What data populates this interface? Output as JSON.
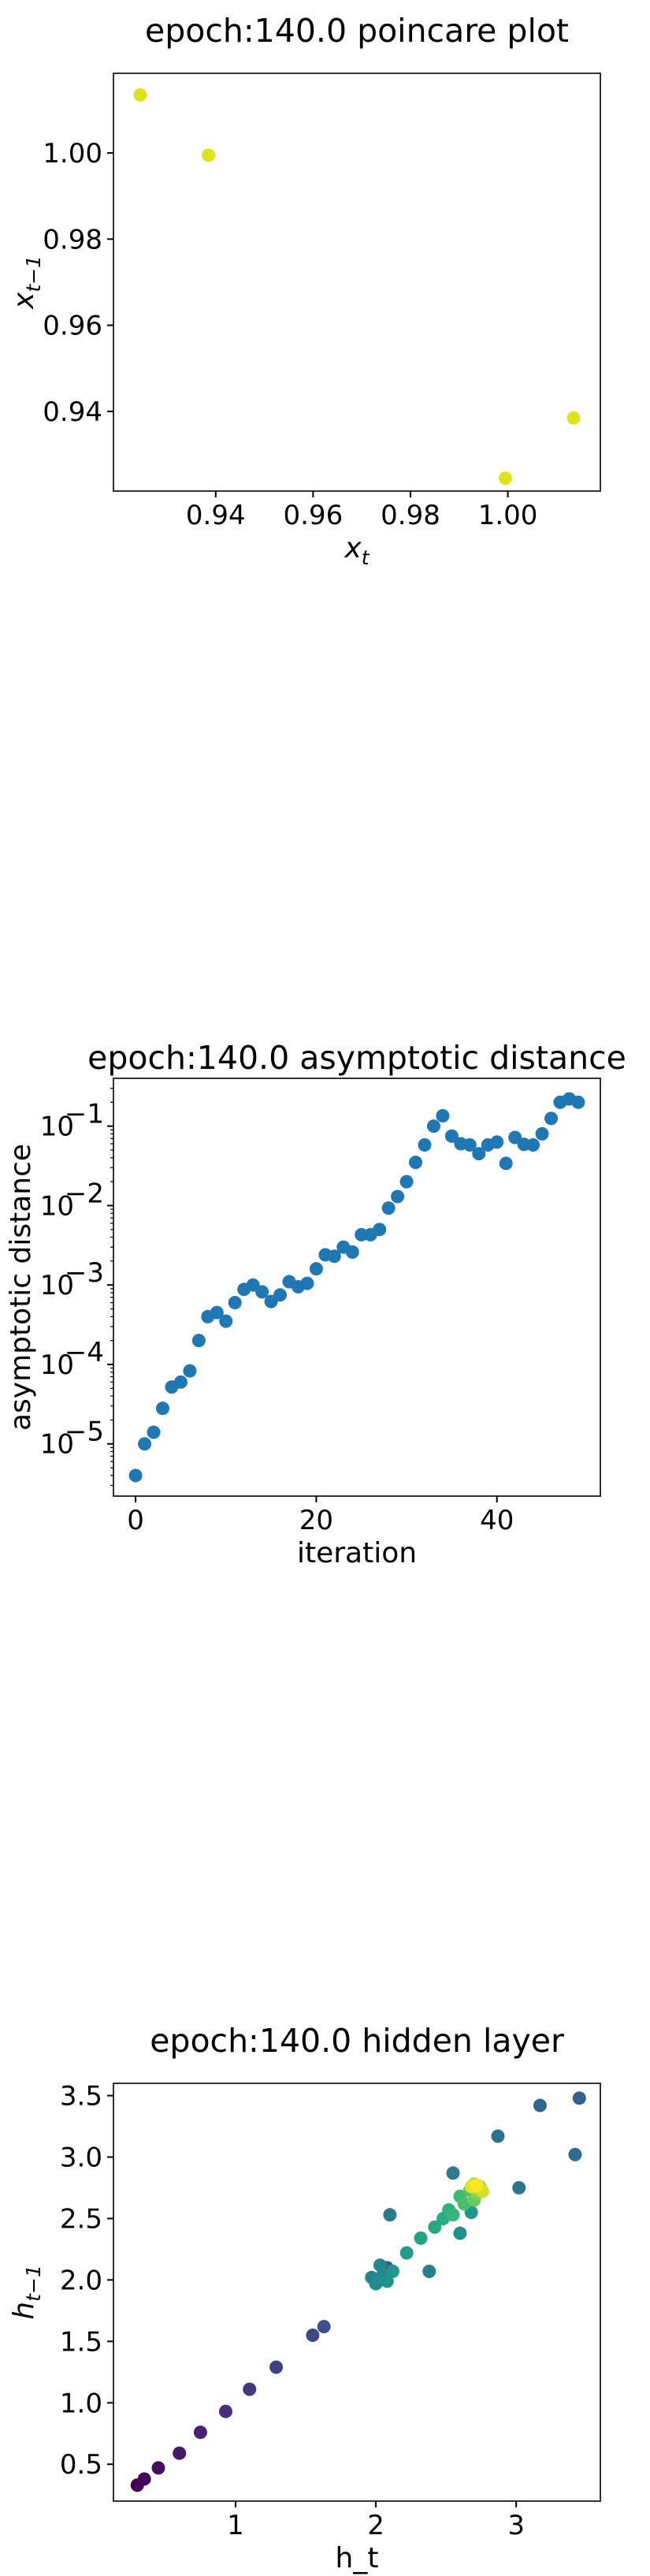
{
  "chart_data": [
    {
      "type": "scatter",
      "title": "epoch:140.0 poincare plot",
      "xlabel": "x_t",
      "ylabel": "x_{t-1}",
      "xlim": [
        0.919,
        1.019
      ],
      "ylim": [
        0.9215,
        1.0185
      ],
      "xticks": [
        0.94,
        0.96,
        0.98,
        1.0
      ],
      "xtick_labels": [
        "0.94",
        "0.96",
        "0.98",
        "1.00"
      ],
      "yticks": [
        0.94,
        0.96,
        0.98,
        1.0
      ],
      "ytick_labels": [
        "0.94",
        "0.96",
        "0.98",
        "1.00"
      ],
      "grid": false,
      "color": "#dde318",
      "x": [
        0.9245,
        0.9385,
        0.9995,
        1.0135
      ],
      "y": [
        1.0135,
        0.9995,
        0.9245,
        0.9385
      ]
    },
    {
      "type": "scatter",
      "title": "epoch:140.0 asymptotic distance",
      "xlabel": "iteration",
      "ylabel": "asymptotic distance",
      "xlim": [
        -2.45,
        51.45
      ],
      "ylim": [
        2.2e-06,
        0.4
      ],
      "yscale": "log",
      "xticks": [
        0,
        20,
        40
      ],
      "xtick_labels": [
        "0",
        "20",
        "40"
      ],
      "yticks": [
        1e-05,
        0.0001,
        0.001,
        0.01,
        0.1
      ],
      "ytick_labels": [
        "10",
        "10",
        "10",
        "10",
        "10"
      ],
      "ytick_exponents": [
        "−5",
        "−4",
        "−3",
        "−2",
        "−1"
      ],
      "grid": false,
      "color": "#1f77b4",
      "x": [
        0,
        1,
        2,
        3,
        4,
        5,
        6,
        7,
        8,
        9,
        10,
        11,
        12,
        13,
        14,
        15,
        16,
        17,
        18,
        19,
        20,
        21,
        22,
        23,
        24,
        25,
        26,
        27,
        28,
        29,
        30,
        31,
        32,
        33,
        34,
        35,
        36,
        37,
        38,
        39,
        40,
        41,
        42,
        43,
        44,
        45,
        46,
        47,
        48,
        49
      ],
      "y": [
        4e-06,
        1e-05,
        1.4e-05,
        2.8e-05,
        5.2e-05,
        6e-05,
        8.3e-05,
        0.0002,
        0.0004,
        0.00045,
        0.00035,
        0.0006,
        0.00088,
        0.001,
        0.00082,
        0.00062,
        0.00075,
        0.0011,
        0.00095,
        0.00105,
        0.0016,
        0.0024,
        0.0023,
        0.003,
        0.0026,
        0.0043,
        0.0043,
        0.005,
        0.0093,
        0.013,
        0.02,
        0.035,
        0.058,
        0.1,
        0.135,
        0.075,
        0.06,
        0.058,
        0.045,
        0.058,
        0.063,
        0.034,
        0.072,
        0.059,
        0.058,
        0.08,
        0.125,
        0.2,
        0.22,
        0.2
      ]
    },
    {
      "type": "scatter",
      "title": "epoch:140.0 hidden layer",
      "xlabel": "h_t",
      "ylabel": "h_{t-1}",
      "xlim": [
        0.13,
        3.6
      ],
      "ylim": [
        0.2,
        3.6
      ],
      "xticks": [
        1,
        2,
        3
      ],
      "xtick_labels": [
        "1",
        "2",
        "3"
      ],
      "yticks": [
        0.5,
        1.0,
        1.5,
        2.0,
        2.5,
        3.0,
        3.5
      ],
      "ytick_labels": [
        "0.5",
        "1.0",
        "1.5",
        "2.0",
        "2.5",
        "3.0",
        "3.5"
      ],
      "grid": false,
      "colormap": "viridis",
      "x": [
        0.3,
        0.35,
        0.45,
        0.6,
        0.75,
        0.93,
        1.1,
        1.29,
        1.55,
        1.63,
        2.08,
        3.45,
        3.17,
        3.42,
        2.87,
        3.02,
        2.1,
        2.38,
        2.55,
        2.6,
        2.68,
        1.97,
        2.03,
        2.05,
        2.0,
        2.08,
        2.12,
        2.22,
        2.32,
        2.42,
        2.48,
        2.52,
        2.55,
        2.6,
        2.63,
        2.67,
        2.7,
        2.72,
        2.74,
        2.7,
        2.73,
        2.76,
        2.68,
        2.72
      ],
      "y": [
        0.33,
        0.38,
        0.47,
        0.59,
        0.76,
        0.93,
        1.11,
        1.29,
        1.55,
        1.62,
        2.1,
        3.48,
        3.42,
        3.02,
        3.17,
        2.75,
        2.53,
        2.07,
        2.87,
        2.38,
        2.55,
        2.02,
        2.12,
        2.04,
        1.97,
        1.99,
        2.07,
        2.22,
        2.34,
        2.43,
        2.5,
        2.57,
        2.53,
        2.68,
        2.62,
        2.73,
        2.65,
        2.7,
        2.76,
        2.78,
        2.74,
        2.72,
        2.76,
        2.77
      ],
      "color_values": [
        0.0,
        0.02,
        0.04,
        0.07,
        0.1,
        0.13,
        0.16,
        0.19,
        0.22,
        0.25,
        0.28,
        0.31,
        0.33,
        0.35,
        0.37,
        0.39,
        0.4,
        0.43,
        0.41,
        0.5,
        0.52,
        0.45,
        0.47,
        0.46,
        0.48,
        0.5,
        0.52,
        0.55,
        0.58,
        0.6,
        0.62,
        0.64,
        0.66,
        0.68,
        0.7,
        0.73,
        0.76,
        0.8,
        0.84,
        0.87,
        0.9,
        0.93,
        0.96,
        1.0
      ]
    }
  ]
}
